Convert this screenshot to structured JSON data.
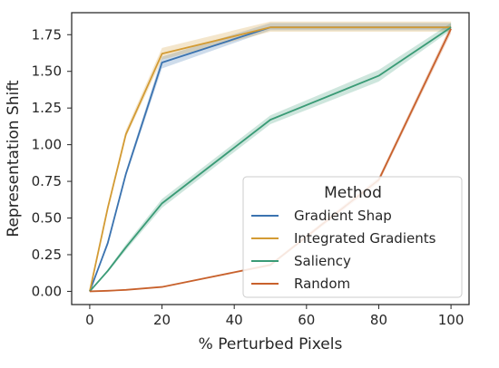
{
  "chart_data": {
    "type": "line",
    "xlabel": "% Perturbed Pixels",
    "ylabel": "Representation Shift",
    "xlim": [
      -5,
      105
    ],
    "ylim": [
      -0.09,
      1.9
    ],
    "xticks": [
      0,
      20,
      40,
      60,
      80,
      100
    ],
    "yticks": [
      0.0,
      0.25,
      0.5,
      0.75,
      1.0,
      1.25,
      1.5,
      1.75
    ],
    "xtick_labels": [
      "0",
      "20",
      "40",
      "60",
      "80",
      "100"
    ],
    "ytick_labels": [
      "0.00",
      "0.25",
      "0.50",
      "0.75",
      "1.00",
      "1.25",
      "1.50",
      "1.75"
    ],
    "grid": false,
    "legend": {
      "title": "Method",
      "position": "lower-right"
    },
    "x": [
      0,
      5,
      10,
      20,
      50,
      80,
      100
    ],
    "series": [
      {
        "name": "Gradient Shap",
        "color": "#3b73b0",
        "values": [
          0.0,
          0.33,
          0.8,
          1.56,
          1.8,
          1.8,
          1.8
        ],
        "lower": [
          0.0,
          0.31,
          0.78,
          1.52,
          1.78,
          1.78,
          1.78
        ],
        "upper": [
          0.0,
          0.35,
          0.82,
          1.6,
          1.83,
          1.83,
          1.83
        ]
      },
      {
        "name": "Integrated Gradients",
        "color": "#d39b34",
        "values": [
          0.0,
          0.57,
          1.07,
          1.62,
          1.8,
          1.8,
          1.8
        ],
        "lower": [
          0.0,
          0.55,
          1.05,
          1.58,
          1.77,
          1.77,
          1.77
        ],
        "upper": [
          0.0,
          0.59,
          1.1,
          1.66,
          1.84,
          1.84,
          1.84
        ]
      },
      {
        "name": "Saliency",
        "color": "#3a9b76",
        "values": [
          0.0,
          0.14,
          0.3,
          0.6,
          1.17,
          1.47,
          1.8
        ],
        "lower": [
          0.0,
          0.13,
          0.28,
          0.57,
          1.14,
          1.43,
          1.78
        ],
        "upper": [
          0.0,
          0.15,
          0.32,
          0.63,
          1.2,
          1.51,
          1.83
        ]
      },
      {
        "name": "Random",
        "color": "#c8612c",
        "values": [
          0.0,
          0.004,
          0.01,
          0.03,
          0.18,
          0.76,
          1.79
        ],
        "lower": [
          0.0,
          0.004,
          0.01,
          0.03,
          0.17,
          0.74,
          1.76
        ],
        "upper": [
          0.0,
          0.004,
          0.01,
          0.03,
          0.19,
          0.78,
          1.82
        ]
      }
    ]
  }
}
